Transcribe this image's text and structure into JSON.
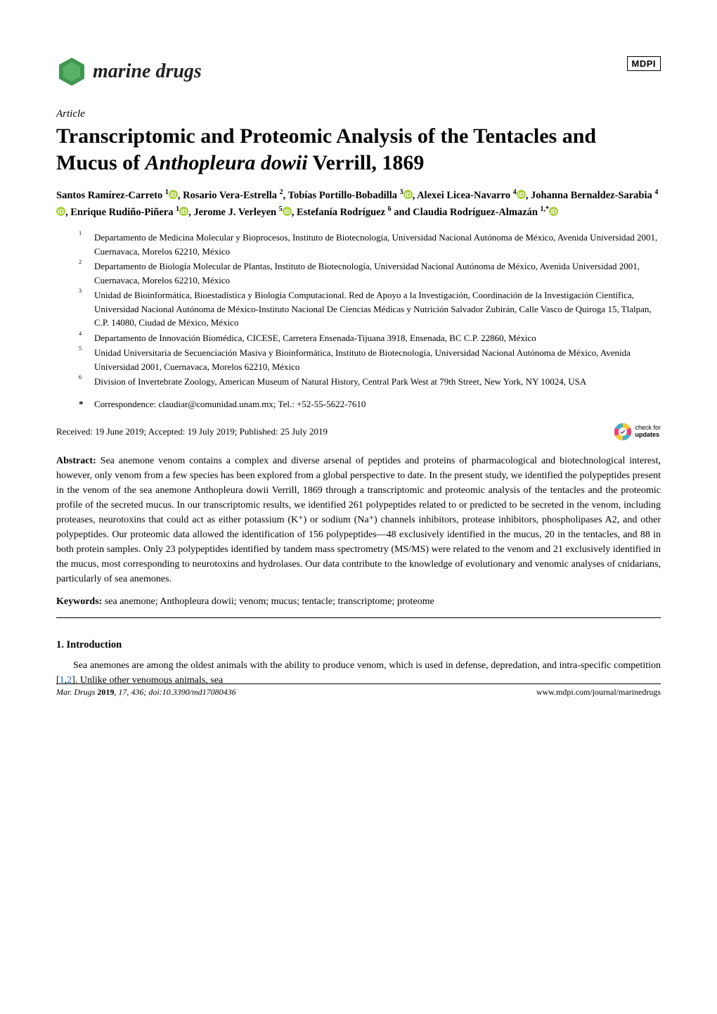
{
  "journal": {
    "name": "marine drugs",
    "logo_color": "#2e8b3d",
    "publisher_logo": "MDPI"
  },
  "article_type": "Article",
  "title_parts": {
    "pre": "Transcriptomic and Proteomic Analysis of the Tentacles and Mucus of ",
    "italic": "Anthopleura dowii",
    "post": " Verrill, 1869"
  },
  "authors": [
    {
      "name": "Santos Ramírez-Carreto",
      "affil": "1",
      "orcid": true
    },
    {
      "name": "Rosario Vera-Estrella",
      "affil": "2",
      "orcid": false
    },
    {
      "name": "Tobías Portillo-Bobadilla",
      "affil": "3",
      "orcid": true
    },
    {
      "name": "Alexei Licea-Navarro",
      "affil": "4",
      "orcid": true
    },
    {
      "name": "Johanna Bernaldez-Sarabia",
      "affil": "4",
      "orcid": true
    },
    {
      "name": "Enrique Rudiño-Piñera",
      "affil": "1",
      "orcid": true
    },
    {
      "name": "Jerome J. Verleyen",
      "affil": "5",
      "orcid": true
    },
    {
      "name": "Estefanía Rodríguez",
      "affil": "6",
      "orcid": false
    },
    {
      "name": "Claudia Rodríguez-Almazán",
      "affil": "1,*",
      "orcid": true
    }
  ],
  "affiliations": [
    {
      "num": "1",
      "text": "Departamento de Medicina Molecular y Bioprocesos, Instituto de Biotecnología, Universidad Nacional Autónoma de México, Avenida Universidad 2001, Cuernavaca, Morelos 62210, México"
    },
    {
      "num": "2",
      "text": "Departamento de Biología Molecular de Plantas, Instituto de Biotecnología, Universidad Nacional Autónoma de México, Avenida Universidad 2001, Cuernavaca, Morelos 62210, México"
    },
    {
      "num": "3",
      "text": "Unidad de Bioinformática, Bioestadística y Biología Computacional. Red de Apoyo a la Investigación, Coordinación de la Investigación Científica, Universidad Nacional Autónoma de México-Instituto Nacional De Ciencias Médicas y Nutrición Salvador Zubirán, Calle Vasco de Quiroga 15, Tlalpan, C.P. 14080, Ciudad de México, México"
    },
    {
      "num": "4",
      "text": "Departamento de Innovación Biomédica, CICESE, Carretera Ensenada-Tijuana 3918, Ensenada, BC C.P. 22860, México"
    },
    {
      "num": "5",
      "text": "Unidad Universitaria de Secuenciación Masiva y Bioinformática, Instituto de Biotecnología, Universidad Nacional Autónoma de México, Avenida Universidad 2001, Cuernavaca, Morelos 62210, México"
    },
    {
      "num": "6",
      "text": "Division of Invertebrate Zoology, American Museum of Natural History, Central Park West at 79th Street, New York, NY 10024, USA"
    }
  ],
  "correspondence": "Correspondence: claudiar@comunidad.unam.mx; Tel.: +52-55-5622-7610",
  "dates": "Received: 19 June 2019; Accepted: 19 July 2019; Published: 25 July 2019",
  "check_updates": {
    "line1": "check for",
    "line2": "updates"
  },
  "abstract_label": "Abstract:",
  "abstract_text": " Sea anemone venom contains a complex and diverse arsenal of peptides and proteins of pharmacological and biotechnological interest, however, only venom from a few species has been explored from a global perspective to date. In the present study, we identified the polypeptides present in the venom of the sea anemone Anthopleura dowii Verrill, 1869 through a transcriptomic and proteomic analysis of the tentacles and the proteomic profile of the secreted mucus. In our transcriptomic results, we identified 261 polypeptides related to or predicted to be secreted in the venom, including proteases, neurotoxins that could act as either potassium (K⁺) or sodium (Na⁺) channels inhibitors, protease inhibitors, phospholipases A2, and other polypeptides. Our proteomic data allowed the identification of 156 polypeptides—48 exclusively identified in the mucus, 20 in the tentacles, and 88 in both protein samples. Only 23 polypeptides identified by tandem mass spectrometry (MS/MS) were related to the venom and 21 exclusively identified in the mucus, most corresponding to neurotoxins and hydrolases. Our data contribute to the knowledge of evolutionary and venomic analyses of cnidarians, particularly of sea anemones.",
  "keywords_label": "Keywords:",
  "keywords_text": " sea anemone; Anthopleura dowii; venom; mucus; tentacle; transcriptome; proteome",
  "section1_heading": "1. Introduction",
  "intro_pre": "Sea anemones are among the oldest animals with the ability to produce venom, which is used in defense, depredation, and intra-specific competition [",
  "intro_cite1": "1",
  "intro_comma": ",",
  "intro_cite2": "2",
  "intro_post": "]. Unlike other venomous animals, sea",
  "footer": {
    "left_pre": "Mar. Drugs ",
    "left_bold": "2019",
    "left_post": ", 17, 436; doi:10.3390/md17080436",
    "right": "www.mdpi.com/journal/marinedrugs"
  },
  "colors": {
    "orcid_green": "#a6ce39",
    "logo_green": "#2e8b3d",
    "link_blue": "#0066cc",
    "crossmark_pink": "#ef3e7a",
    "crossmark_yellow": "#ffc72c",
    "crossmark_blue": "#3eb1c8"
  }
}
